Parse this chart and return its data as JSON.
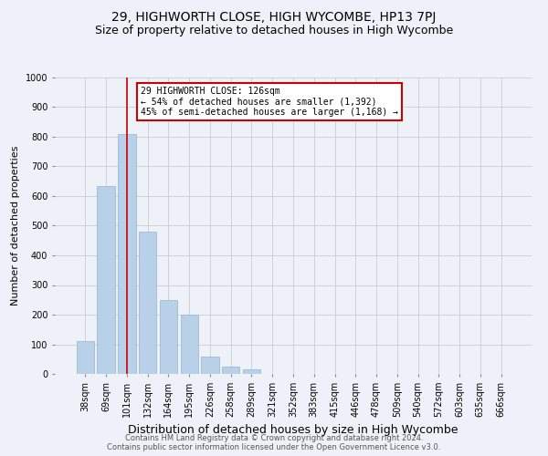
{
  "title": "29, HIGHWORTH CLOSE, HIGH WYCOMBE, HP13 7PJ",
  "subtitle": "Size of property relative to detached houses in High Wycombe",
  "xlabel": "Distribution of detached houses by size in High Wycombe",
  "ylabel": "Number of detached properties",
  "footer_line1": "Contains HM Land Registry data © Crown copyright and database right 2024.",
  "footer_line2": "Contains public sector information licensed under the Open Government Licence v3.0.",
  "bar_labels": [
    "38sqm",
    "69sqm",
    "101sqm",
    "132sqm",
    "164sqm",
    "195sqm",
    "226sqm",
    "258sqm",
    "289sqm",
    "321sqm",
    "352sqm",
    "383sqm",
    "415sqm",
    "446sqm",
    "478sqm",
    "509sqm",
    "540sqm",
    "572sqm",
    "603sqm",
    "635sqm",
    "666sqm"
  ],
  "bar_values": [
    110,
    635,
    810,
    480,
    250,
    200,
    60,
    25,
    15,
    0,
    0,
    0,
    0,
    0,
    0,
    0,
    0,
    0,
    0,
    0,
    0
  ],
  "bar_color": "#b8d0e8",
  "bar_edge_color": "#92b4d0",
  "annotation_text": "29 HIGHWORTH CLOSE: 126sqm\n← 54% of detached houses are smaller (1,392)\n45% of semi-detached houses are larger (1,168) →",
  "annotation_box_color": "#ffffff",
  "annotation_box_edge_color": "#cc0000",
  "vline_x": 2.0,
  "vline_color": "#cc0000",
  "ylim": [
    0,
    1000
  ],
  "yticks": [
    0,
    100,
    200,
    300,
    400,
    500,
    600,
    700,
    800,
    900,
    1000
  ],
  "grid_color": "#cccccc",
  "background_color": "#eef2f8",
  "title_fontsize": 10,
  "subtitle_fontsize": 9,
  "xlabel_fontsize": 9,
  "ylabel_fontsize": 8,
  "tick_fontsize": 7,
  "footer_fontsize": 6
}
